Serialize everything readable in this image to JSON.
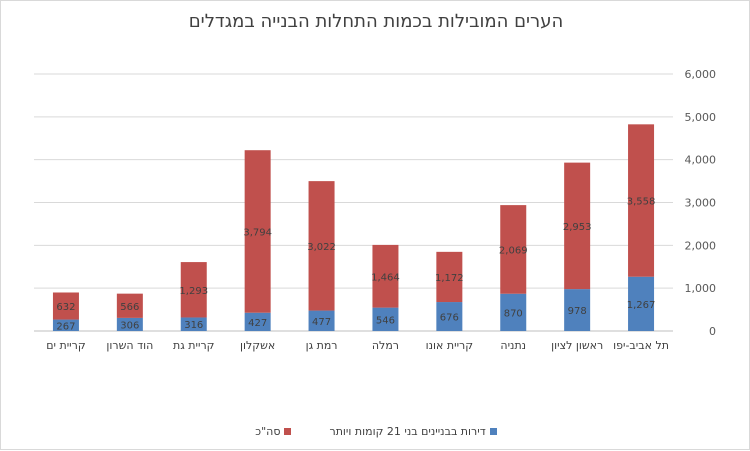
{
  "chart_data": {
    "type": "bar",
    "stacked": true,
    "title": "הערים המובילות בכמות התחלות הבנייה במגדלים",
    "xlabel": "",
    "ylabel": "",
    "ylim": [
      0,
      6000
    ],
    "yticks": [
      0,
      1000,
      2000,
      3000,
      4000,
      5000,
      6000
    ],
    "ytick_labels": [
      "0",
      "1,000",
      "2,000",
      "3,000",
      "4,000",
      "5,000",
      "6,000"
    ],
    "y_axis_side": "right",
    "grid": true,
    "legend_position": "bottom",
    "categories": [
      "תל אביב-יפו",
      "ראשון לציון",
      "נתניה",
      "קריית אונו",
      "רמלה",
      "רמת גן",
      "אשקלון",
      "קריית גת",
      "הוד השרון",
      "קריית ים"
    ],
    "series": [
      {
        "name": "דירות בבניינים בני 21 קומות ויותר",
        "color": "#4f81bd",
        "values": [
          1267,
          978,
          870,
          676,
          546,
          477,
          427,
          316,
          306,
          267
        ],
        "labels": [
          "1,267",
          "978",
          "870",
          "676",
          "546",
          "477",
          "427",
          "316",
          "306",
          "267"
        ]
      },
      {
        "name": "סה\"כ",
        "color": "#c0504d",
        "values": [
          3558,
          2953,
          2069,
          1172,
          1464,
          3022,
          3794,
          1293,
          566,
          632
        ],
        "labels": [
          "3,558",
          "2,953",
          "2,069",
          "1,172",
          "1,464",
          "3,022",
          "3,794",
          "1,293",
          "566",
          "632"
        ]
      }
    ]
  }
}
